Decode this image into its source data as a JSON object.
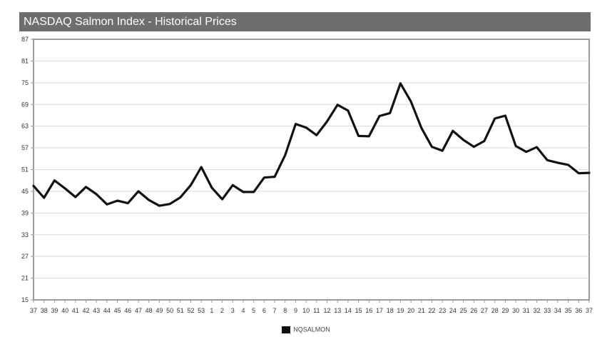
{
  "title": "NASDAQ Salmon Index - Historical Prices",
  "chart_data": {
    "type": "line",
    "title": "NASDAQ Salmon Index - Historical Prices",
    "xlabel": "",
    "ylabel": "",
    "ylim": [
      15,
      87
    ],
    "yticks": [
      15,
      21,
      27,
      33,
      39,
      45,
      51,
      57,
      63,
      69,
      75,
      81,
      87
    ],
    "categories": [
      "37",
      "38",
      "39",
      "40",
      "41",
      "42",
      "43",
      "44",
      "45",
      "46",
      "47",
      "48",
      "49",
      "50",
      "51",
      "52",
      "53",
      "1",
      "2",
      "3",
      "4",
      "5",
      "6",
      "7",
      "8",
      "9",
      "10",
      "11",
      "12",
      "13",
      "14",
      "15",
      "16",
      "17",
      "18",
      "19",
      "20",
      "21",
      "22",
      "23",
      "24",
      "25",
      "26",
      "27",
      "28",
      "29",
      "30",
      "31",
      "32",
      "33",
      "34",
      "35",
      "36",
      "37"
    ],
    "series": [
      {
        "name": "NQSALMON",
        "color": "#111111",
        "values": [
          46.5,
          43.2,
          48.0,
          45.8,
          43.4,
          46.2,
          44.2,
          41.4,
          42.4,
          41.7,
          45.0,
          42.6,
          41.0,
          41.5,
          43.3,
          46.7,
          51.7,
          46.0,
          42.8,
          46.7,
          44.8,
          44.8,
          48.8,
          49.0,
          55.0,
          63.6,
          62.6,
          60.5,
          64.3,
          68.9,
          67.3,
          60.3,
          60.2,
          65.8,
          66.6,
          74.8,
          69.8,
          62.5,
          57.3,
          56.2,
          61.7,
          59.2,
          57.3,
          58.9,
          65.1,
          65.9,
          57.5,
          55.9,
          57.2,
          53.6,
          52.9,
          52.3,
          50.0,
          50.1
        ]
      }
    ],
    "legend": "bottom-center",
    "grid": true
  }
}
